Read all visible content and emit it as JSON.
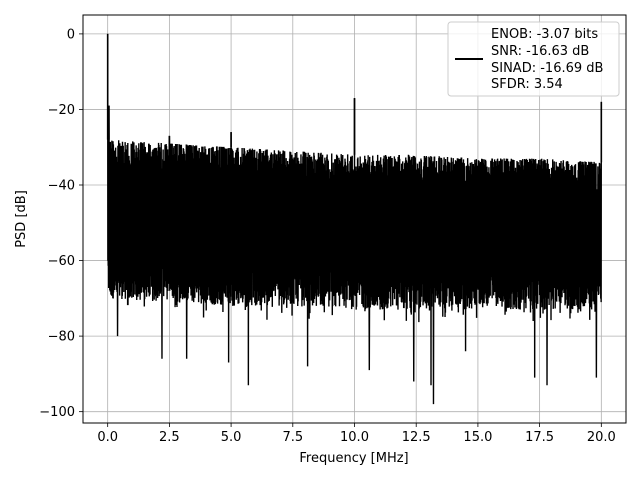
{
  "chart_data": {
    "type": "line",
    "xlabel": "Frequency [MHz]",
    "ylabel": "PSD [dB]",
    "xlim": [
      -1.0,
      21.0
    ],
    "ylim": [
      -103,
      5
    ],
    "xticks": [
      0.0,
      2.5,
      5.0,
      7.5,
      10.0,
      12.5,
      15.0,
      17.5,
      20.0
    ],
    "xtick_labels": [
      "0.0",
      "2.5",
      "5.0",
      "7.5",
      "10.0",
      "12.5",
      "15.0",
      "17.5",
      "20.0"
    ],
    "yticks": [
      0,
      -20,
      -40,
      -60,
      -80,
      -100
    ],
    "ytick_labels": [
      "0",
      "−20",
      "−40",
      "−60",
      "−80",
      "−100"
    ],
    "grid": true,
    "line_color": "#000000",
    "legend": {
      "placement": "top-right",
      "entries": [
        "ENOB: -3.07 bits",
        "SNR: -16.63 dB",
        "SINAD: -16.69 dB",
        "SFDR: 3.54"
      ]
    },
    "noise_envelope": {
      "x": [
        0.1,
        2.5,
        5.0,
        7.5,
        10.0,
        12.5,
        15.0,
        17.5,
        20.0
      ],
      "upper": [
        -28,
        -29,
        -30,
        -31,
        -32,
        -32,
        -33,
        -33,
        -34
      ],
      "lower": [
        -70,
        -71,
        -72,
        -72,
        -73,
        -73,
        -73,
        -73,
        -73
      ],
      "deep_nulls": [
        {
          "x": 0.4,
          "y": -80
        },
        {
          "x": 2.2,
          "y": -86
        },
        {
          "x": 3.2,
          "y": -86
        },
        {
          "x": 4.9,
          "y": -87
        },
        {
          "x": 5.7,
          "y": -93
        },
        {
          "x": 8.1,
          "y": -88
        },
        {
          "x": 10.6,
          "y": -89
        },
        {
          "x": 12.4,
          "y": -92
        },
        {
          "x": 13.1,
          "y": -93
        },
        {
          "x": 13.2,
          "y": -98
        },
        {
          "x": 14.5,
          "y": -84
        },
        {
          "x": 17.3,
          "y": -91
        },
        {
          "x": 17.8,
          "y": -93
        },
        {
          "x": 19.8,
          "y": -91
        }
      ]
    },
    "peaks": [
      {
        "x": 0.0,
        "y": 0.0
      },
      {
        "x": 0.05,
        "y": -19
      },
      {
        "x": 2.5,
        "y": -27
      },
      {
        "x": 5.0,
        "y": -26
      },
      {
        "x": 10.0,
        "y": -17
      },
      {
        "x": 20.0,
        "y": -18
      }
    ]
  }
}
